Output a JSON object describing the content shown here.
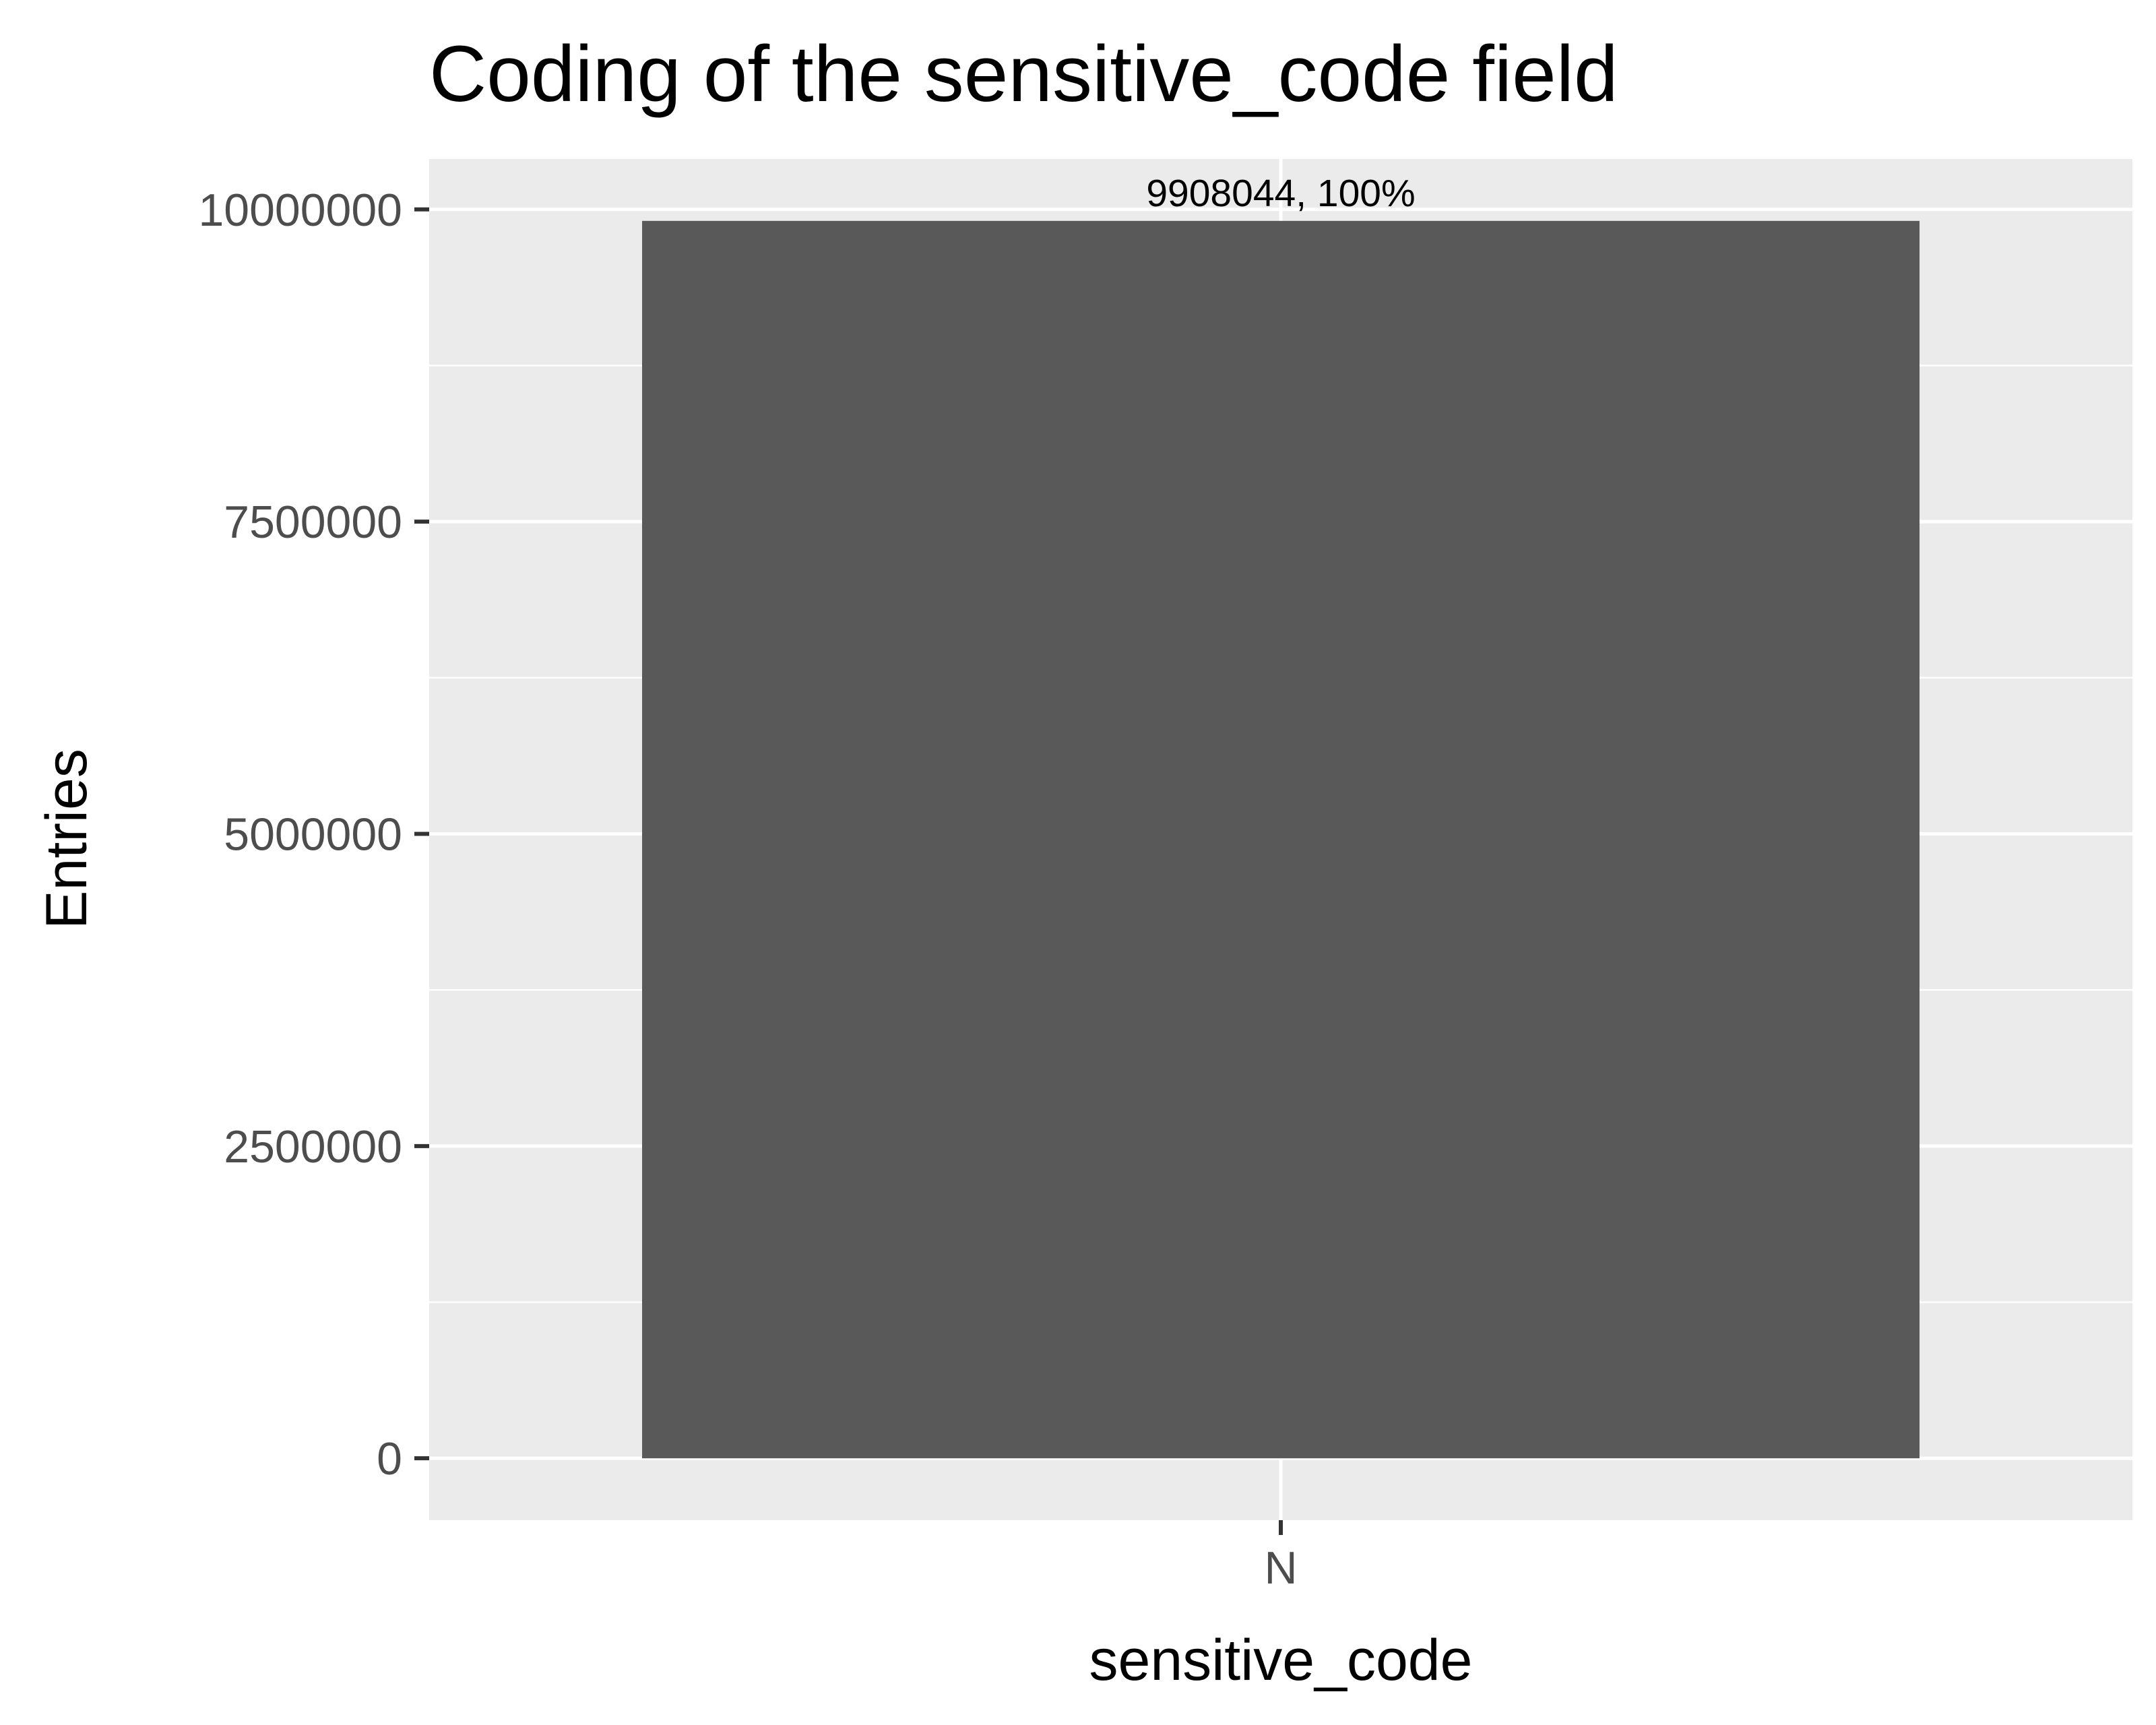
{
  "chart_data": {
    "type": "bar",
    "title": "Coding of the sensitive_code field",
    "xlabel": "sensitive_code",
    "ylabel": "Entries",
    "categories": [
      "N"
    ],
    "values": [
      9908044
    ],
    "data_labels": [
      "9908044, 100%"
    ],
    "ylim": [
      -495402,
      10403446
    ],
    "y_ticks": [
      0,
      2500000,
      5000000,
      7500000,
      10000000
    ],
    "y_tick_labels": [
      "0",
      "2500000",
      "5000000",
      "7500000",
      "10000000"
    ],
    "y_minor_ticks": [
      1250000,
      3750000,
      6250000,
      8750000
    ],
    "grid": true,
    "legend": "none",
    "colors": {
      "panel_background": "#ebebeb",
      "gridline": "#ffffff",
      "bar_fill": "#595959",
      "tick_mark": "#333333",
      "tick_label": "#4d4d4d",
      "text": "#000000"
    }
  }
}
